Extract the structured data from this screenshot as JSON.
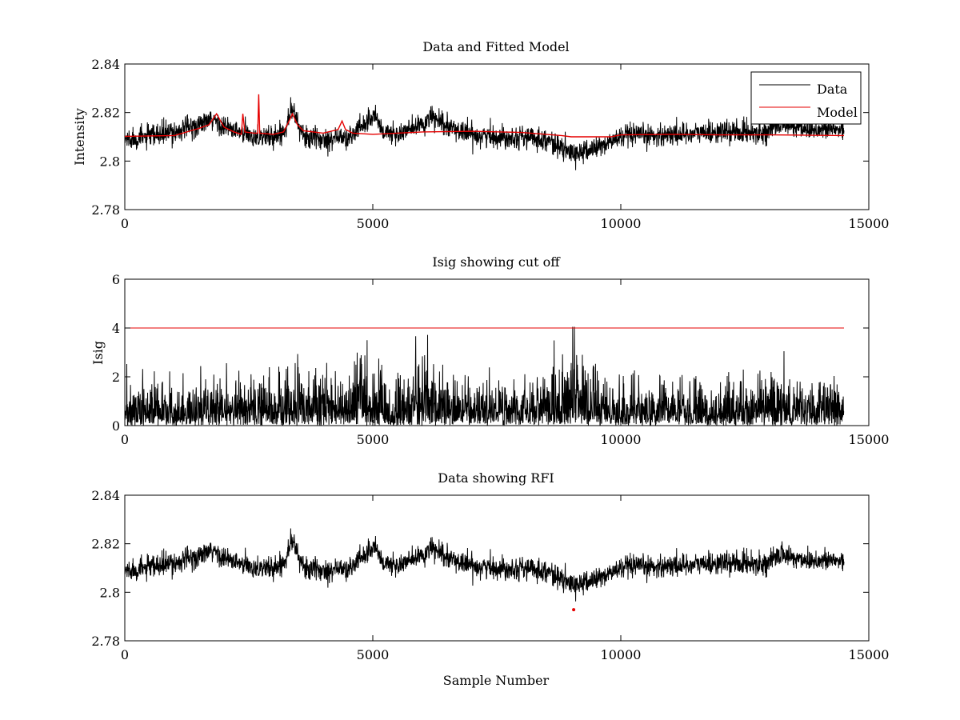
{
  "colors": {
    "data": "#000000",
    "model": "#e60000",
    "axis": "#000000",
    "background": "#ffffff"
  },
  "chart_data": [
    {
      "type": "line",
      "title": "Data and Fitted Model",
      "xlabel": "",
      "ylabel": "Intensity",
      "xlim": [
        0,
        15000
      ],
      "ylim": [
        2.78,
        2.84
      ],
      "xticks": [
        0,
        5000,
        10000,
        15000
      ],
      "xtick_labels": [
        "0",
        "5000",
        "10000",
        "15000"
      ],
      "yticks": [
        2.78,
        2.8,
        2.82,
        2.84
      ],
      "ytick_labels": [
        "2.78",
        "2.8",
        "2.82",
        "2.84"
      ],
      "grid": false,
      "legend": {
        "position": "top-right",
        "entries": [
          "Data",
          "Model"
        ]
      },
      "series": [
        {
          "name": "Data",
          "color": "#000000",
          "kind": "noisy",
          "x_range": [
            0,
            14500
          ],
          "noise_amplitude": 0.005,
          "baseline": [
            [
              0,
              2.809
            ],
            [
              500,
              2.81
            ],
            [
              1000,
              2.812
            ],
            [
              1500,
              2.815
            ],
            [
              1800,
              2.817
            ],
            [
              2000,
              2.814
            ],
            [
              2400,
              2.811
            ],
            [
              2700,
              2.81
            ],
            [
              3000,
              2.81
            ],
            [
              3200,
              2.812
            ],
            [
              3300,
              2.818
            ],
            [
              3350,
              2.822
            ],
            [
              3450,
              2.818
            ],
            [
              3600,
              2.81
            ],
            [
              4000,
              2.809
            ],
            [
              4300,
              2.81
            ],
            [
              4500,
              2.809
            ],
            [
              4900,
              2.817
            ],
            [
              5050,
              2.819
            ],
            [
              5200,
              2.812
            ],
            [
              5500,
              2.811
            ],
            [
              6000,
              2.815
            ],
            [
              6200,
              2.818
            ],
            [
              6500,
              2.814
            ],
            [
              7000,
              2.811
            ],
            [
              7500,
              2.81
            ],
            [
              8000,
              2.81
            ],
            [
              8500,
              2.809
            ],
            [
              9000,
              2.803
            ],
            [
              9300,
              2.804
            ],
            [
              9700,
              2.807
            ],
            [
              10000,
              2.81
            ],
            [
              11000,
              2.811
            ],
            [
              12000,
              2.812
            ],
            [
              13000,
              2.812
            ],
            [
              13200,
              2.816
            ],
            [
              13500,
              2.814
            ],
            [
              14000,
              2.813
            ],
            [
              14500,
              2.813
            ]
          ]
        },
        {
          "name": "Model",
          "color": "#e60000",
          "kind": "line",
          "points": [
            [
              0,
              2.8102
            ],
            [
              1000,
              2.8105
            ],
            [
              1500,
              2.8135
            ],
            [
              1700,
              2.815
            ],
            [
              1850,
              2.8195
            ],
            [
              2000,
              2.814
            ],
            [
              2200,
              2.812
            ],
            [
              2350,
              2.811
            ],
            [
              2380,
              2.8195
            ],
            [
              2420,
              2.812
            ],
            [
              2600,
              2.8115
            ],
            [
              2680,
              2.8115
            ],
            [
              2700,
              2.8275
            ],
            [
              2720,
              2.8115
            ],
            [
              3000,
              2.811
            ],
            [
              3200,
              2.812
            ],
            [
              3300,
              2.816
            ],
            [
              3380,
              2.8195
            ],
            [
              3480,
              2.815
            ],
            [
              3600,
              2.8125
            ],
            [
              4000,
              2.8115
            ],
            [
              4300,
              2.813
            ],
            [
              4380,
              2.8165
            ],
            [
              4450,
              2.813
            ],
            [
              4600,
              2.8115
            ],
            [
              5000,
              2.811
            ],
            [
              6000,
              2.812
            ],
            [
              7000,
              2.8123
            ],
            [
              8000,
              2.8118
            ],
            [
              8800,
              2.8105
            ],
            [
              9000,
              2.81
            ],
            [
              9800,
              2.81
            ],
            [
              10000,
              2.8108
            ],
            [
              11000,
              2.811
            ],
            [
              12000,
              2.8108
            ],
            [
              13000,
              2.8108
            ],
            [
              14500,
              2.8105
            ]
          ]
        }
      ]
    },
    {
      "type": "line",
      "title": "Isig showing cut off",
      "xlabel": "",
      "ylabel": "Isig",
      "xlim": [
        0,
        15000
      ],
      "ylim": [
        0,
        6
      ],
      "xticks": [
        0,
        5000,
        10000,
        15000
      ],
      "xtick_labels": [
        "0",
        "5000",
        "10000",
        "15000"
      ],
      "yticks": [
        0,
        2,
        4,
        6
      ],
      "ytick_labels": [
        "0",
        "2",
        "4",
        "6"
      ],
      "grid": false,
      "series": [
        {
          "name": "Isig",
          "color": "#000000",
          "kind": "isig",
          "x_range": [
            0,
            14500
          ],
          "envelope": [
            [
              0,
              1.6
            ],
            [
              1000,
              1.7
            ],
            [
              2000,
              1.9
            ],
            [
              3000,
              2.0
            ],
            [
              3300,
              2.6
            ],
            [
              3600,
              2.2
            ],
            [
              4000,
              2.3
            ],
            [
              4500,
              2.0
            ],
            [
              5000,
              2.8
            ],
            [
              5300,
              1.9
            ],
            [
              6000,
              2.4
            ],
            [
              6200,
              2.8
            ],
            [
              6500,
              2.0
            ],
            [
              7000,
              1.8
            ],
            [
              8000,
              1.7
            ],
            [
              8500,
              2.2
            ],
            [
              9000,
              3.0
            ],
            [
              9300,
              2.8
            ],
            [
              9800,
              2.0
            ],
            [
              10500,
              1.8
            ],
            [
              12000,
              1.7
            ],
            [
              13000,
              2.2
            ],
            [
              13500,
              2.0
            ],
            [
              14500,
              1.9
            ]
          ]
        },
        {
          "name": "Cut off",
          "color": "#e60000",
          "kind": "line",
          "points": [
            [
              0,
              4
            ],
            [
              14500,
              4
            ]
          ]
        }
      ]
    },
    {
      "type": "line",
      "title": "Data showing RFI",
      "xlabel": "Sample Number",
      "ylabel": "",
      "xlim": [
        0,
        15000
      ],
      "ylim": [
        2.78,
        2.84
      ],
      "xticks": [
        0,
        5000,
        10000,
        15000
      ],
      "xtick_labels": [
        "0",
        "5000",
        "10000",
        "15000"
      ],
      "yticks": [
        2.78,
        2.8,
        2.82,
        2.84
      ],
      "ytick_labels": [
        "2.78",
        "2.8",
        "2.82",
        "2.84"
      ],
      "grid": false,
      "series": [
        {
          "name": "Data",
          "color": "#000000",
          "kind": "noisy",
          "x_range": [
            0,
            14500
          ],
          "noise_amplitude": 0.005,
          "baseline": [
            [
              0,
              2.809
            ],
            [
              500,
              2.81
            ],
            [
              1000,
              2.812
            ],
            [
              1500,
              2.815
            ],
            [
              1800,
              2.817
            ],
            [
              2000,
              2.814
            ],
            [
              2400,
              2.811
            ],
            [
              2700,
              2.81
            ],
            [
              3000,
              2.81
            ],
            [
              3200,
              2.812
            ],
            [
              3300,
              2.818
            ],
            [
              3350,
              2.822
            ],
            [
              3450,
              2.818
            ],
            [
              3600,
              2.81
            ],
            [
              4000,
              2.809
            ],
            [
              4300,
              2.81
            ],
            [
              4500,
              2.809
            ],
            [
              4900,
              2.817
            ],
            [
              5050,
              2.819
            ],
            [
              5200,
              2.812
            ],
            [
              5500,
              2.811
            ],
            [
              6000,
              2.815
            ],
            [
              6200,
              2.818
            ],
            [
              6500,
              2.814
            ],
            [
              7000,
              2.811
            ],
            [
              7500,
              2.81
            ],
            [
              8000,
              2.81
            ],
            [
              8500,
              2.809
            ],
            [
              9000,
              2.803
            ],
            [
              9300,
              2.804
            ],
            [
              9700,
              2.807
            ],
            [
              10000,
              2.81
            ],
            [
              11000,
              2.811
            ],
            [
              12000,
              2.812
            ],
            [
              13000,
              2.812
            ],
            [
              13200,
              2.816
            ],
            [
              13500,
              2.814
            ],
            [
              14000,
              2.813
            ],
            [
              14500,
              2.813
            ]
          ]
        },
        {
          "name": "RFI",
          "color": "#e60000",
          "kind": "markers",
          "points": [
            [
              9050,
              2.7928
            ]
          ]
        }
      ]
    }
  ]
}
